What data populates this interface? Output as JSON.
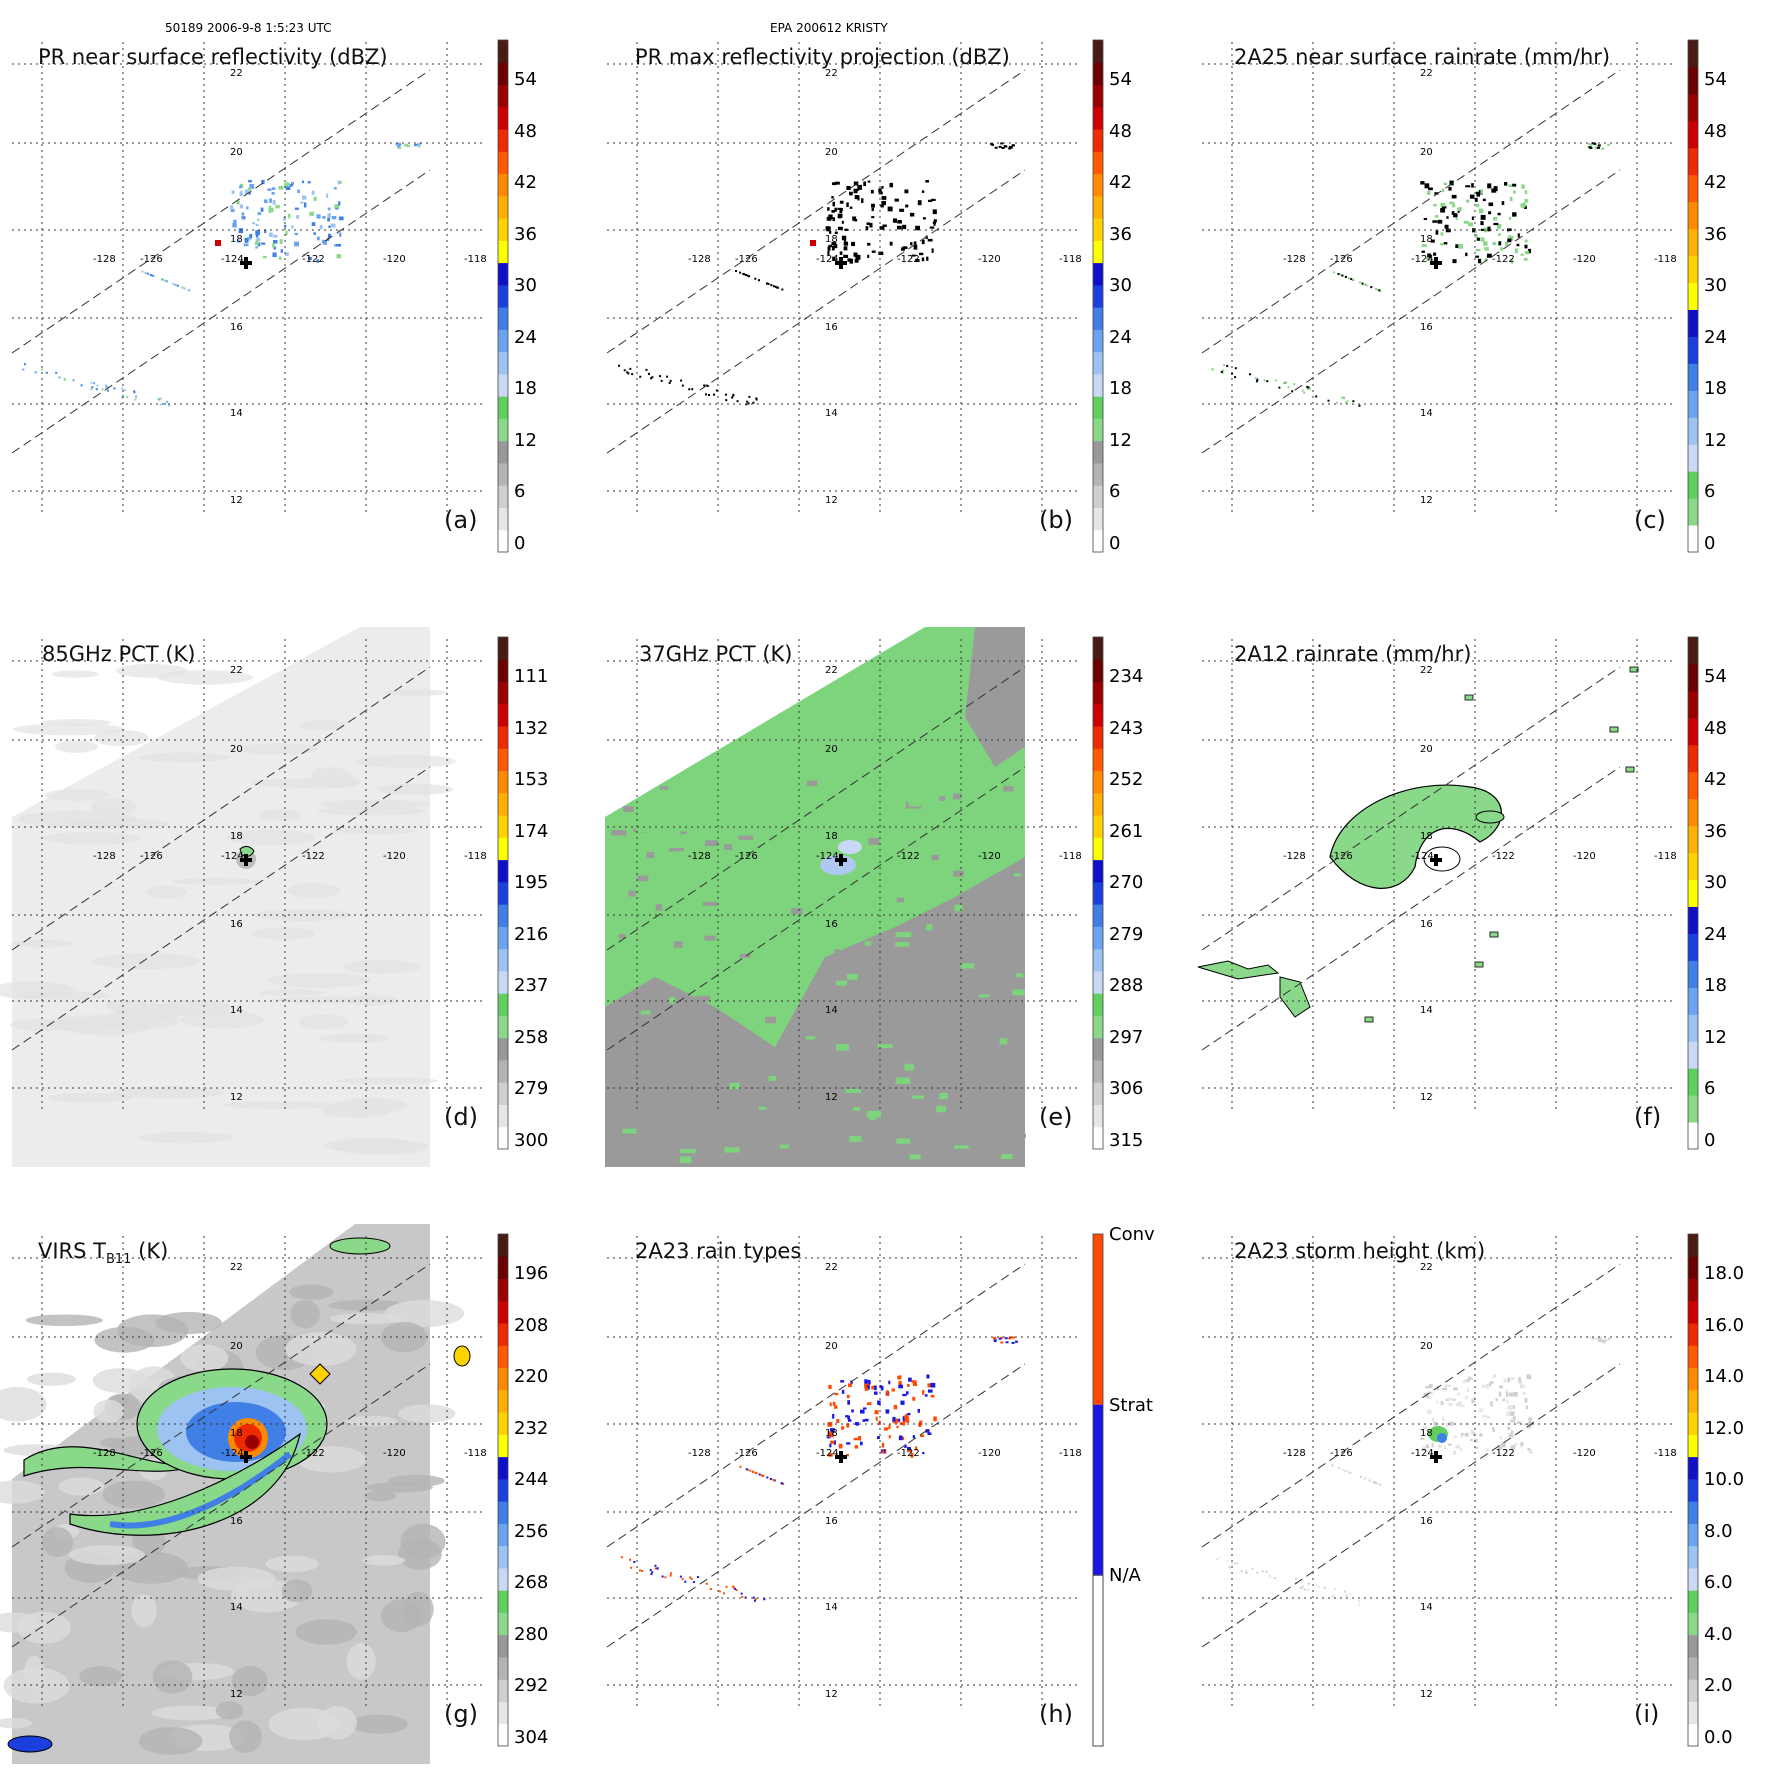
{
  "header": {
    "left": "50189 2006-9-8 1:5:23 UTC",
    "center": "EPA 200612 KRISTY"
  },
  "colors": {
    "scale": [
      "#ffffff",
      "#e6e6e6",
      "#cfcfcf",
      "#b3b3b3",
      "#999999",
      "#8ad88a",
      "#5fcf5f",
      "#c9d9f5",
      "#9cc3f2",
      "#6aa3ef",
      "#3f7fe6",
      "#1b3fdc",
      "#1010c8",
      "#ffff00",
      "#ffd200",
      "#ffb000",
      "#ff8a00",
      "#ff5a00",
      "#ee2a00",
      "#cc0000",
      "#9a0000",
      "#6b0000",
      "#4a1b12"
    ],
    "cross": "#000000",
    "grid": "#333333"
  },
  "map": {
    "lon_ticks": [
      "-128",
      "-126",
      "-124",
      "-122",
      "-120",
      "-118"
    ],
    "lat_ticks": [
      "22",
      "20",
      "18",
      "16",
      "14",
      "12"
    ]
  },
  "panels": [
    {
      "id": "a",
      "title": "PR near surface reflectivity (dBZ)",
      "label": "(a)",
      "cbar": [
        "54",
        "48",
        "42",
        "36",
        "30",
        "24",
        "18",
        "12",
        "6",
        "0"
      ],
      "cbar_type": "standard"
    },
    {
      "id": "b",
      "title": "PR max reflectivity projection (dBZ)",
      "label": "(b)",
      "cbar": [
        "54",
        "48",
        "42",
        "36",
        "30",
        "24",
        "18",
        "12",
        "6",
        "0"
      ],
      "cbar_type": "standard"
    },
    {
      "id": "c",
      "title": "2A25 near surface rainrate (mm/hr)",
      "label": "(c)",
      "cbar": [
        "54",
        "48",
        "42",
        "36",
        "30",
        "24",
        "18",
        "12",
        "6",
        "0"
      ],
      "cbar_type": "rain"
    },
    {
      "id": "d",
      "title": "85GHz PCT (K)",
      "label": "(d)",
      "cbar": [
        "111",
        "132",
        "153",
        "174",
        "195",
        "216",
        "237",
        "258",
        "279",
        "300"
      ],
      "cbar_type": "standard"
    },
    {
      "id": "e",
      "title": "37GHz PCT (K)",
      "label": "(e)",
      "cbar": [
        "234",
        "243",
        "252",
        "261",
        "270",
        "279",
        "288",
        "297",
        "306",
        "315"
      ],
      "cbar_type": "standard"
    },
    {
      "id": "f",
      "title": "2A12 rainrate (mm/hr)",
      "label": "(f)",
      "cbar": [
        "54",
        "48",
        "42",
        "36",
        "30",
        "24",
        "18",
        "12",
        "6",
        "0"
      ],
      "cbar_type": "rain"
    },
    {
      "id": "g",
      "title": "VIRS T",
      "title_sub": "B11",
      "title_tail": " (K)",
      "label": "(g)",
      "cbar": [
        "196",
        "208",
        "220",
        "232",
        "244",
        "256",
        "268",
        "280",
        "292",
        "304"
      ],
      "cbar_type": "standard"
    },
    {
      "id": "h",
      "title": "2A23 rain types",
      "label": "(h)",
      "cbar": [
        "Conv",
        "Strat",
        "N/A"
      ],
      "cbar_type": "types"
    },
    {
      "id": "i",
      "title": "2A23 storm height (km)",
      "label": "(i)",
      "cbar": [
        "18.0",
        "16.0",
        "14.0",
        "12.0",
        "10.0",
        "8.0",
        "6.0",
        "4.0",
        "2.0",
        "0.0"
      ],
      "cbar_type": "standard"
    }
  ]
}
